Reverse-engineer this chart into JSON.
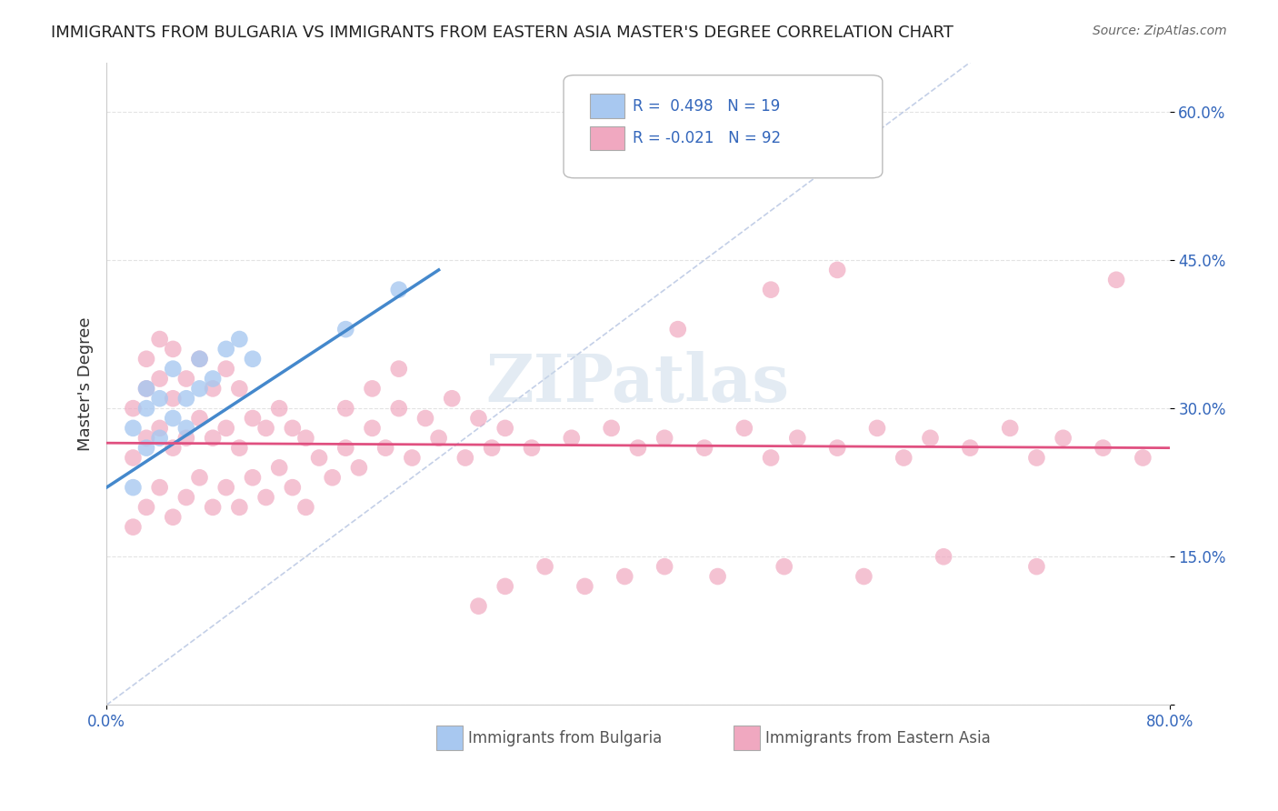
{
  "title": "IMMIGRANTS FROM BULGARIA VS IMMIGRANTS FROM EASTERN ASIA MASTER'S DEGREE CORRELATION CHART",
  "source": "Source: ZipAtlas.com",
  "ylabel": "Master's Degree",
  "x_min": 0.0,
  "x_max": 0.8,
  "y_min": 0.0,
  "y_max": 0.65,
  "y_ticks": [
    0.0,
    0.15,
    0.3,
    0.45,
    0.6
  ],
  "y_tick_labels": [
    "",
    "15.0%",
    "30.0%",
    "45.0%",
    "60.0%"
  ],
  "blue_R": 0.498,
  "blue_N": 19,
  "pink_R": -0.021,
  "pink_N": 92,
  "blue_color": "#a8c8f0",
  "pink_color": "#f0a8c0",
  "blue_line_color": "#4488cc",
  "pink_line_color": "#e05080",
  "ref_line_color": "#aabbdd",
  "watermark_color": "#c8d8e8",
  "background_color": "#ffffff",
  "grid_color": "#dddddd",
  "blue_scatter_x": [
    0.02,
    0.02,
    0.03,
    0.03,
    0.03,
    0.04,
    0.04,
    0.05,
    0.05,
    0.06,
    0.06,
    0.07,
    0.07,
    0.08,
    0.09,
    0.1,
    0.11,
    0.18,
    0.22
  ],
  "blue_scatter_y": [
    0.22,
    0.28,
    0.26,
    0.3,
    0.32,
    0.27,
    0.31,
    0.29,
    0.34,
    0.28,
    0.31,
    0.32,
    0.35,
    0.33,
    0.36,
    0.37,
    0.35,
    0.38,
    0.42
  ],
  "pink_scatter_x": [
    0.02,
    0.02,
    0.02,
    0.03,
    0.03,
    0.03,
    0.03,
    0.04,
    0.04,
    0.04,
    0.04,
    0.05,
    0.05,
    0.05,
    0.05,
    0.06,
    0.06,
    0.06,
    0.07,
    0.07,
    0.07,
    0.08,
    0.08,
    0.08,
    0.09,
    0.09,
    0.09,
    0.1,
    0.1,
    0.1,
    0.11,
    0.11,
    0.12,
    0.12,
    0.13,
    0.13,
    0.14,
    0.14,
    0.15,
    0.15,
    0.16,
    0.17,
    0.18,
    0.18,
    0.19,
    0.2,
    0.2,
    0.21,
    0.22,
    0.22,
    0.23,
    0.24,
    0.25,
    0.26,
    0.27,
    0.28,
    0.29,
    0.3,
    0.32,
    0.35,
    0.38,
    0.4,
    0.42,
    0.45,
    0.48,
    0.5,
    0.52,
    0.55,
    0.58,
    0.6,
    0.62,
    0.65,
    0.68,
    0.7,
    0.72,
    0.75,
    0.78,
    0.43,
    0.5,
    0.55,
    0.28,
    0.3,
    0.33,
    0.36,
    0.39,
    0.42,
    0.46,
    0.51,
    0.57,
    0.63,
    0.7,
    0.76
  ],
  "pink_scatter_y": [
    0.18,
    0.25,
    0.3,
    0.2,
    0.27,
    0.32,
    0.35,
    0.22,
    0.28,
    0.33,
    0.37,
    0.19,
    0.26,
    0.31,
    0.36,
    0.21,
    0.27,
    0.33,
    0.23,
    0.29,
    0.35,
    0.2,
    0.27,
    0.32,
    0.22,
    0.28,
    0.34,
    0.2,
    0.26,
    0.32,
    0.23,
    0.29,
    0.21,
    0.28,
    0.24,
    0.3,
    0.22,
    0.28,
    0.2,
    0.27,
    0.25,
    0.23,
    0.26,
    0.3,
    0.24,
    0.28,
    0.32,
    0.26,
    0.3,
    0.34,
    0.25,
    0.29,
    0.27,
    0.31,
    0.25,
    0.29,
    0.26,
    0.28,
    0.26,
    0.27,
    0.28,
    0.26,
    0.27,
    0.26,
    0.28,
    0.25,
    0.27,
    0.26,
    0.28,
    0.25,
    0.27,
    0.26,
    0.28,
    0.25,
    0.27,
    0.26,
    0.25,
    0.38,
    0.42,
    0.44,
    0.1,
    0.12,
    0.14,
    0.12,
    0.13,
    0.14,
    0.13,
    0.14,
    0.13,
    0.15,
    0.14,
    0.43
  ],
  "blue_trend_x": [
    0.0,
    0.25
  ],
  "blue_trend_y": [
    0.22,
    0.44
  ],
  "pink_trend_x": [
    0.0,
    0.8
  ],
  "pink_trend_y": [
    0.265,
    0.26
  ],
  "ref_line_x": [
    0.0,
    0.65
  ],
  "ref_line_y": [
    0.0,
    0.65
  ]
}
